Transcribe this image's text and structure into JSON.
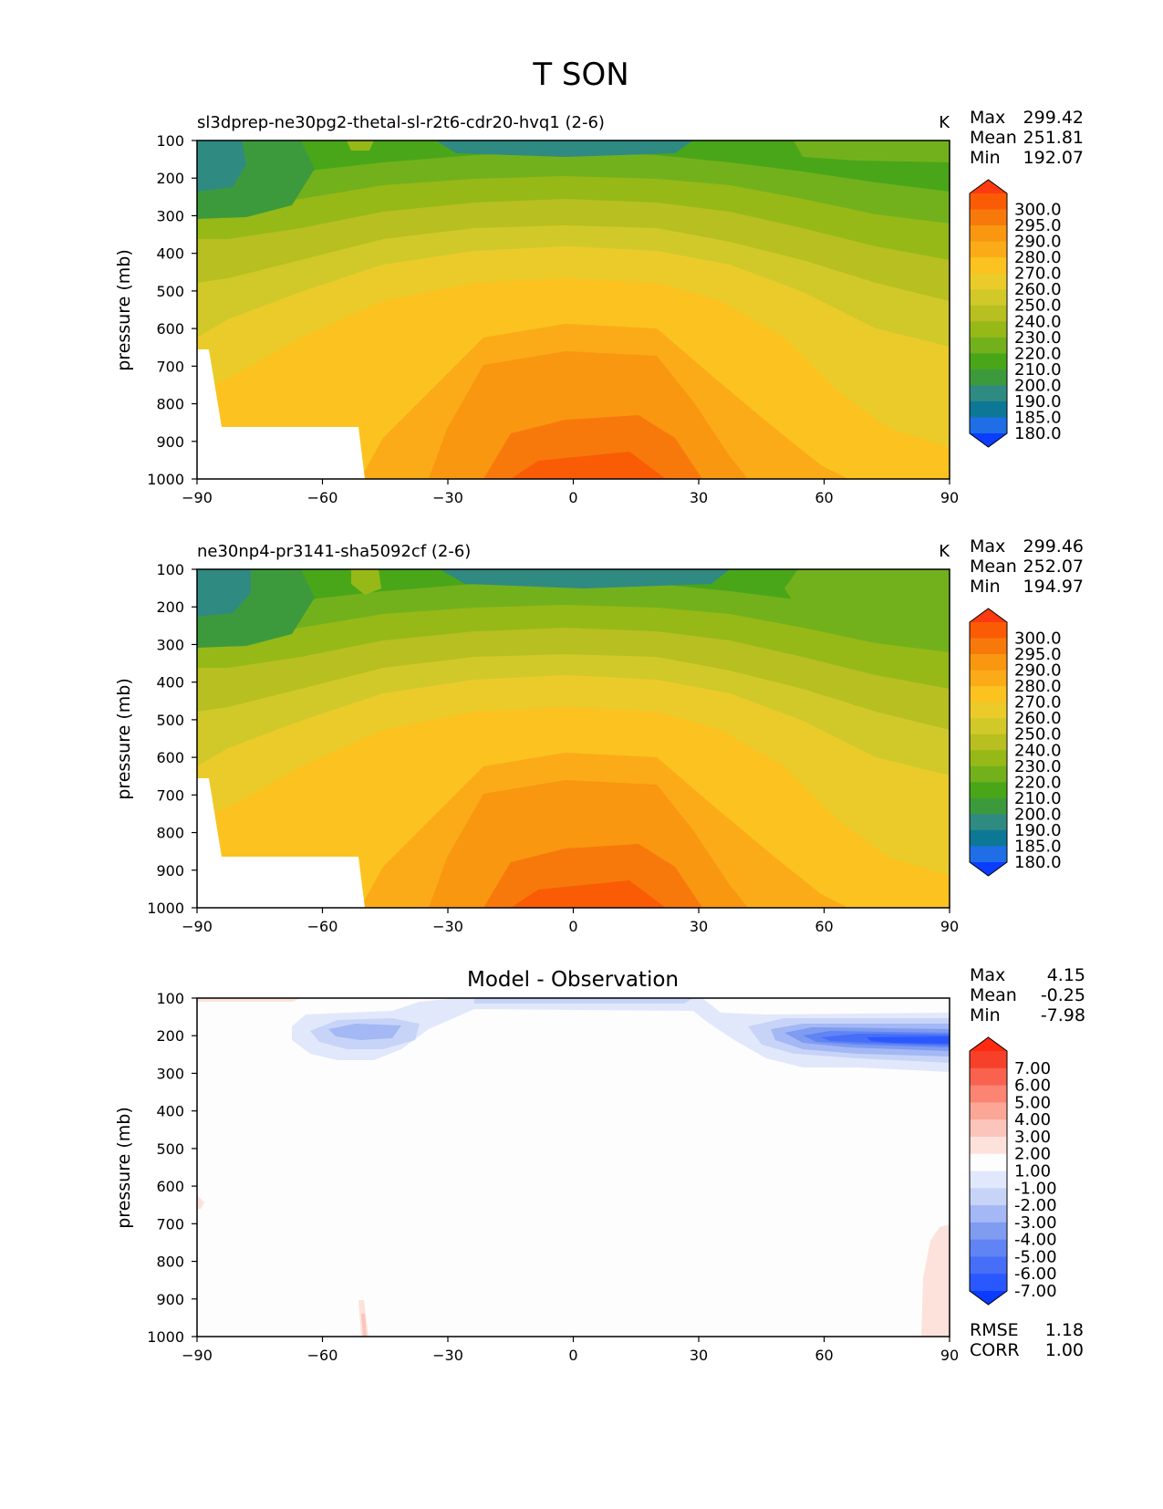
{
  "figure_title": "T SON",
  "panels": [
    {
      "title_left": "sl3dprep-ne30pg2-thetal-sl-r2t6-cdr20-hvq1 (2-6)",
      "title_center": "",
      "units": "K",
      "stats": [
        {
          "label": "Max",
          "value": "299.42"
        },
        {
          "label": "Mean",
          "value": "251.81"
        },
        {
          "label": "Min",
          "value": "192.07"
        }
      ],
      "colorbar_labels": [
        "300.0",
        "295.0",
        "290.0",
        "280.0",
        "270.0",
        "260.0",
        "250.0",
        "240.0",
        "230.0",
        "220.0",
        "210.0",
        "200.0",
        "190.0",
        "185.0",
        "180.0"
      ],
      "bottom_stats": []
    },
    {
      "title_left": "ne30np4-pr3141-sha5092cf (2-6)",
      "title_center": "",
      "units": "K",
      "stats": [
        {
          "label": "Max",
          "value": "299.46"
        },
        {
          "label": "Mean",
          "value": "252.07"
        },
        {
          "label": "Min",
          "value": "194.97"
        }
      ],
      "colorbar_labels": [
        "300.0",
        "295.0",
        "290.0",
        "280.0",
        "270.0",
        "260.0",
        "250.0",
        "240.0",
        "230.0",
        "220.0",
        "210.0",
        "200.0",
        "190.0",
        "185.0",
        "180.0"
      ],
      "bottom_stats": []
    },
    {
      "title_left": "",
      "title_center": "Model - Observation",
      "units": "",
      "stats": [
        {
          "label": "Max",
          "value": "4.15"
        },
        {
          "label": "Mean",
          "value": "-0.25"
        },
        {
          "label": "Min",
          "value": "-7.98"
        }
      ],
      "colorbar_labels": [
        "7.00",
        "6.00",
        "5.00",
        "4.00",
        "3.00",
        "2.00",
        "1.00",
        "-1.00",
        "-2.00",
        "-3.00",
        "-4.00",
        "-5.00",
        "-6.00",
        "-7.00"
      ],
      "bottom_stats": [
        {
          "label": "RMSE",
          "value": "1.18"
        },
        {
          "label": "CORR",
          "value": "1.00"
        }
      ]
    }
  ],
  "colors": {
    "temperature_scale": [
      "#0a3dff",
      "#1f6ee6",
      "#0d7896",
      "#2f8a82",
      "#3d9a3c",
      "#4aa619",
      "#73b11c",
      "#96b918",
      "#b8bf20",
      "#d1c92a",
      "#ebcb2a",
      "#fcc21f",
      "#fbab18",
      "#f99711",
      "#f8790b",
      "#fa5c05",
      "#ff3a10"
    ],
    "difference_scale": [
      "#0b3bff",
      "#2a58ff",
      "#466ef7",
      "#6084f4",
      "#7f9cf0",
      "#a3b8f4",
      "#c7d4f8",
      "#e2e8fb",
      "#fdfdfd",
      "#fde2dc",
      "#fcc5bb",
      "#fca696",
      "#fb8473",
      "#f8624e",
      "#f6402a",
      "#ff2a10"
    ]
  },
  "chart_data": [
    {
      "type": "heatmap",
      "title": "sl3dprep-ne30pg2-thetal-sl-r2t6-cdr20-hvq1 (2-6)",
      "units": "K",
      "xlabel": "",
      "ylabel": "pressure (mb)",
      "x_ticks": [
        "−90",
        "−60",
        "−30",
        "0",
        "30",
        "60",
        "90"
      ],
      "y_ticks": [
        "100",
        "200",
        "300",
        "400",
        "500",
        "600",
        "700",
        "800",
        "900",
        "1000"
      ],
      "xlim": [
        -90,
        90
      ],
      "ylim": [
        1000,
        100
      ],
      "contour_levels": [
        180,
        185,
        190,
        200,
        210,
        220,
        230,
        240,
        250,
        260,
        270,
        280,
        290,
        295,
        300
      ],
      "approx_field": {
        "latitude": [
          -90,
          -60,
          -30,
          0,
          30,
          60,
          90
        ],
        "pressure": [
          100,
          200,
          300,
          400,
          500,
          600,
          700,
          800,
          900,
          1000
        ],
        "temperature": [
          [
            203,
            213,
            203,
            198,
            203,
            220,
            222
          ],
          [
            205,
            213,
            220,
            220,
            220,
            213,
            213
          ],
          [
            213,
            225,
            232,
            234,
            232,
            222,
            214
          ],
          [
            224,
            236,
            245,
            250,
            245,
            232,
            224
          ],
          [
            233,
            246,
            258,
            262,
            258,
            243,
            232
          ],
          [
            240,
            255,
            268,
            272,
            268,
            252,
            238
          ],
          [
            null,
            262,
            276,
            282,
            276,
            260,
            248
          ],
          [
            null,
            266,
            282,
            288,
            282,
            266,
            252
          ],
          [
            null,
            null,
            286,
            293,
            288,
            272,
            258
          ],
          [
            null,
            null,
            290,
            298,
            292,
            277,
            262
          ]
        ],
        "missing_below_surface": true
      }
    },
    {
      "type": "heatmap",
      "title": "ne30np4-pr3141-sha5092cf (2-6)",
      "units": "K",
      "xlabel": "",
      "ylabel": "pressure (mb)",
      "x_ticks": [
        "−90",
        "−60",
        "−30",
        "0",
        "30",
        "60",
        "90"
      ],
      "y_ticks": [
        "100",
        "200",
        "300",
        "400",
        "500",
        "600",
        "700",
        "800",
        "900",
        "1000"
      ],
      "xlim": [
        -90,
        90
      ],
      "ylim": [
        1000,
        100
      ],
      "contour_levels": [
        180,
        185,
        190,
        200,
        210,
        220,
        230,
        240,
        250,
        260,
        270,
        280,
        290,
        295,
        300
      ],
      "approx_field": {
        "latitude": [
          -90,
          -60,
          -30,
          0,
          30,
          60,
          90
        ],
        "pressure": [
          100,
          200,
          300,
          400,
          500,
          600,
          700,
          800,
          900,
          1000
        ],
        "temperature": [
          [
            203,
            214,
            204,
            199,
            204,
            224,
            226
          ],
          [
            206,
            215,
            222,
            222,
            222,
            218,
            218
          ],
          [
            214,
            226,
            233,
            235,
            233,
            226,
            219
          ],
          [
            225,
            237,
            246,
            251,
            246,
            234,
            226
          ],
          [
            234,
            247,
            258,
            262,
            258,
            244,
            234
          ],
          [
            241,
            256,
            268,
            272,
            268,
            252,
            240
          ],
          [
            null,
            262,
            276,
            282,
            276,
            260,
            249
          ],
          [
            null,
            266,
            282,
            288,
            282,
            266,
            253
          ],
          [
            null,
            null,
            286,
            293,
            288,
            272,
            258
          ],
          [
            null,
            null,
            290,
            298,
            292,
            277,
            262
          ]
        ],
        "missing_below_surface": true
      }
    },
    {
      "type": "heatmap",
      "title": "Model - Observation",
      "units": "",
      "xlabel": "",
      "ylabel": "pressure (mb)",
      "x_ticks": [
        "−90",
        "−60",
        "−30",
        "0",
        "30",
        "60",
        "90"
      ],
      "y_ticks": [
        "100",
        "200",
        "300",
        "400",
        "500",
        "600",
        "700",
        "800",
        "900",
        "1000"
      ],
      "xlim": [
        -90,
        90
      ],
      "ylim": [
        1000,
        100
      ],
      "contour_levels": [
        -7,
        -6,
        -5,
        -4,
        -3,
        -2,
        -1,
        1,
        2,
        3,
        4,
        5,
        6,
        7
      ],
      "approx_field": {
        "features": [
          {
            "lat_range": [
              -70,
              -45
            ],
            "p_range": [
              130,
              260
            ],
            "min_value": -3,
            "sign": "negative"
          },
          {
            "lat_range": [
              -35,
              35
            ],
            "p_range": [
              100,
              120
            ],
            "min_value": -1.5,
            "sign": "negative"
          },
          {
            "lat_range": [
              50,
              90
            ],
            "p_range": [
              150,
              290
            ],
            "min_value": -7.98,
            "sign": "negative"
          },
          {
            "lat_range": [
              -90,
              -75
            ],
            "p_range": [
              100,
              105
            ],
            "min_value": 1,
            "sign": "positive"
          },
          {
            "lat_range": [
              -51,
              -49
            ],
            "p_range": [
              900,
              1000
            ],
            "min_value": 2,
            "sign": "positive"
          },
          {
            "lat_range": [
              82,
              90
            ],
            "p_range": [
              700,
              1000
            ],
            "min_value": 1,
            "sign": "positive"
          }
        ]
      }
    }
  ]
}
